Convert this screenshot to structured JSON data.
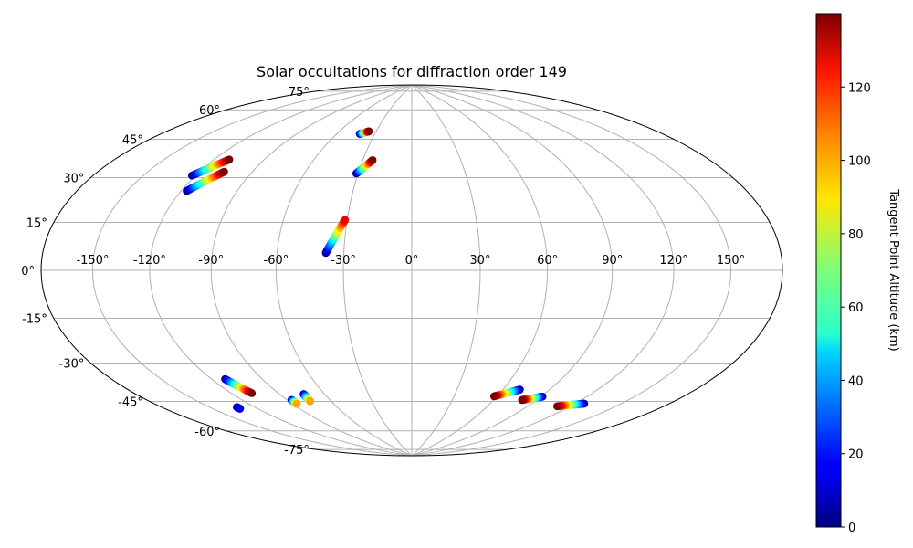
{
  "chart_data": {
    "type": "scatter",
    "projection": "hammer",
    "title": "Solar occultations for diffraction order 149",
    "longitude_ticks": [
      "-150°",
      "-120°",
      "-90°",
      "-60°",
      "-30°",
      "0°",
      "30°",
      "60°",
      "90°",
      "120°",
      "150°"
    ],
    "longitude_tick_values": [
      -150,
      -120,
      -90,
      -60,
      -30,
      0,
      30,
      60,
      90,
      120,
      150
    ],
    "latitude_ticks": [
      "75°",
      "60°",
      "45°",
      "30°",
      "15°",
      "0°",
      "-15°",
      "-30°",
      "-45°",
      "-60°",
      "-75°"
    ],
    "latitude_tick_values": [
      75,
      60,
      45,
      30,
      15,
      0,
      -15,
      -30,
      -45,
      -60,
      -75
    ],
    "grid": true,
    "colorbar": {
      "label": "Tangent Point Altitude (km)",
      "colormap": "jet",
      "range": [
        0,
        140
      ],
      "ticks": [
        "0",
        "20",
        "40",
        "60",
        "80",
        "100",
        "120"
      ],
      "tick_values": [
        0,
        20,
        40,
        60,
        80,
        100,
        120
      ]
    },
    "tracks": [
      {
        "lon_start": -42,
        "lat_start": 62,
        "lon_end": -36,
        "lat_end": 63.5,
        "alt_start": 0,
        "alt_end": 140
      },
      {
        "lon_start": -31,
        "lat_start": 43,
        "lon_end": -24,
        "lat_end": 49.5,
        "alt_start": 0,
        "alt_end": 140
      },
      {
        "lon_start": -122,
        "lat_start": 37,
        "lon_end": -111,
        "lat_end": 45,
        "alt_start": 0,
        "alt_end": 140
      },
      {
        "lon_start": -117,
        "lat_start": 31,
        "lon_end": -106,
        "lat_end": 40,
        "alt_start": 0,
        "alt_end": 140
      },
      {
        "lon_start": -38,
        "lat_start": 7.5,
        "lon_end": -31,
        "lat_end": 22,
        "alt_start": 0,
        "alt_end": 125
      },
      {
        "lon_start": 71,
        "lat_start": -52,
        "lon_end": 58,
        "lat_end": -56,
        "alt_start": 0,
        "alt_end": 140
      },
      {
        "lon_start": 91,
        "lat_start": -54,
        "lon_end": 80,
        "lat_end": -56.5,
        "alt_start": 0,
        "alt_end": 140
      },
      {
        "lon_start": 126,
        "lat_start": -54,
        "lon_end": 111,
        "lat_end": -57,
        "alt_start": 0,
        "alt_end": 140
      },
      {
        "lon_start": -112,
        "lat_start": -44,
        "lon_end": -107,
        "lat_end": -51,
        "alt_start": 0,
        "alt_end": 140
      },
      {
        "lon_start": -87,
        "lat_start": -56,
        "lon_end": -87,
        "lat_end": -58,
        "alt_start": 0,
        "alt_end": 100
      },
      {
        "lon_start": -74,
        "lat_start": -54,
        "lon_end": -75,
        "lat_end": -57.5,
        "alt_start": 0,
        "alt_end": 100
      },
      {
        "lon_start": -132,
        "lat_start": -55,
        "lon_end": -132,
        "lat_end": -55.8,
        "alt_start": 0,
        "alt_end": 15
      }
    ]
  }
}
